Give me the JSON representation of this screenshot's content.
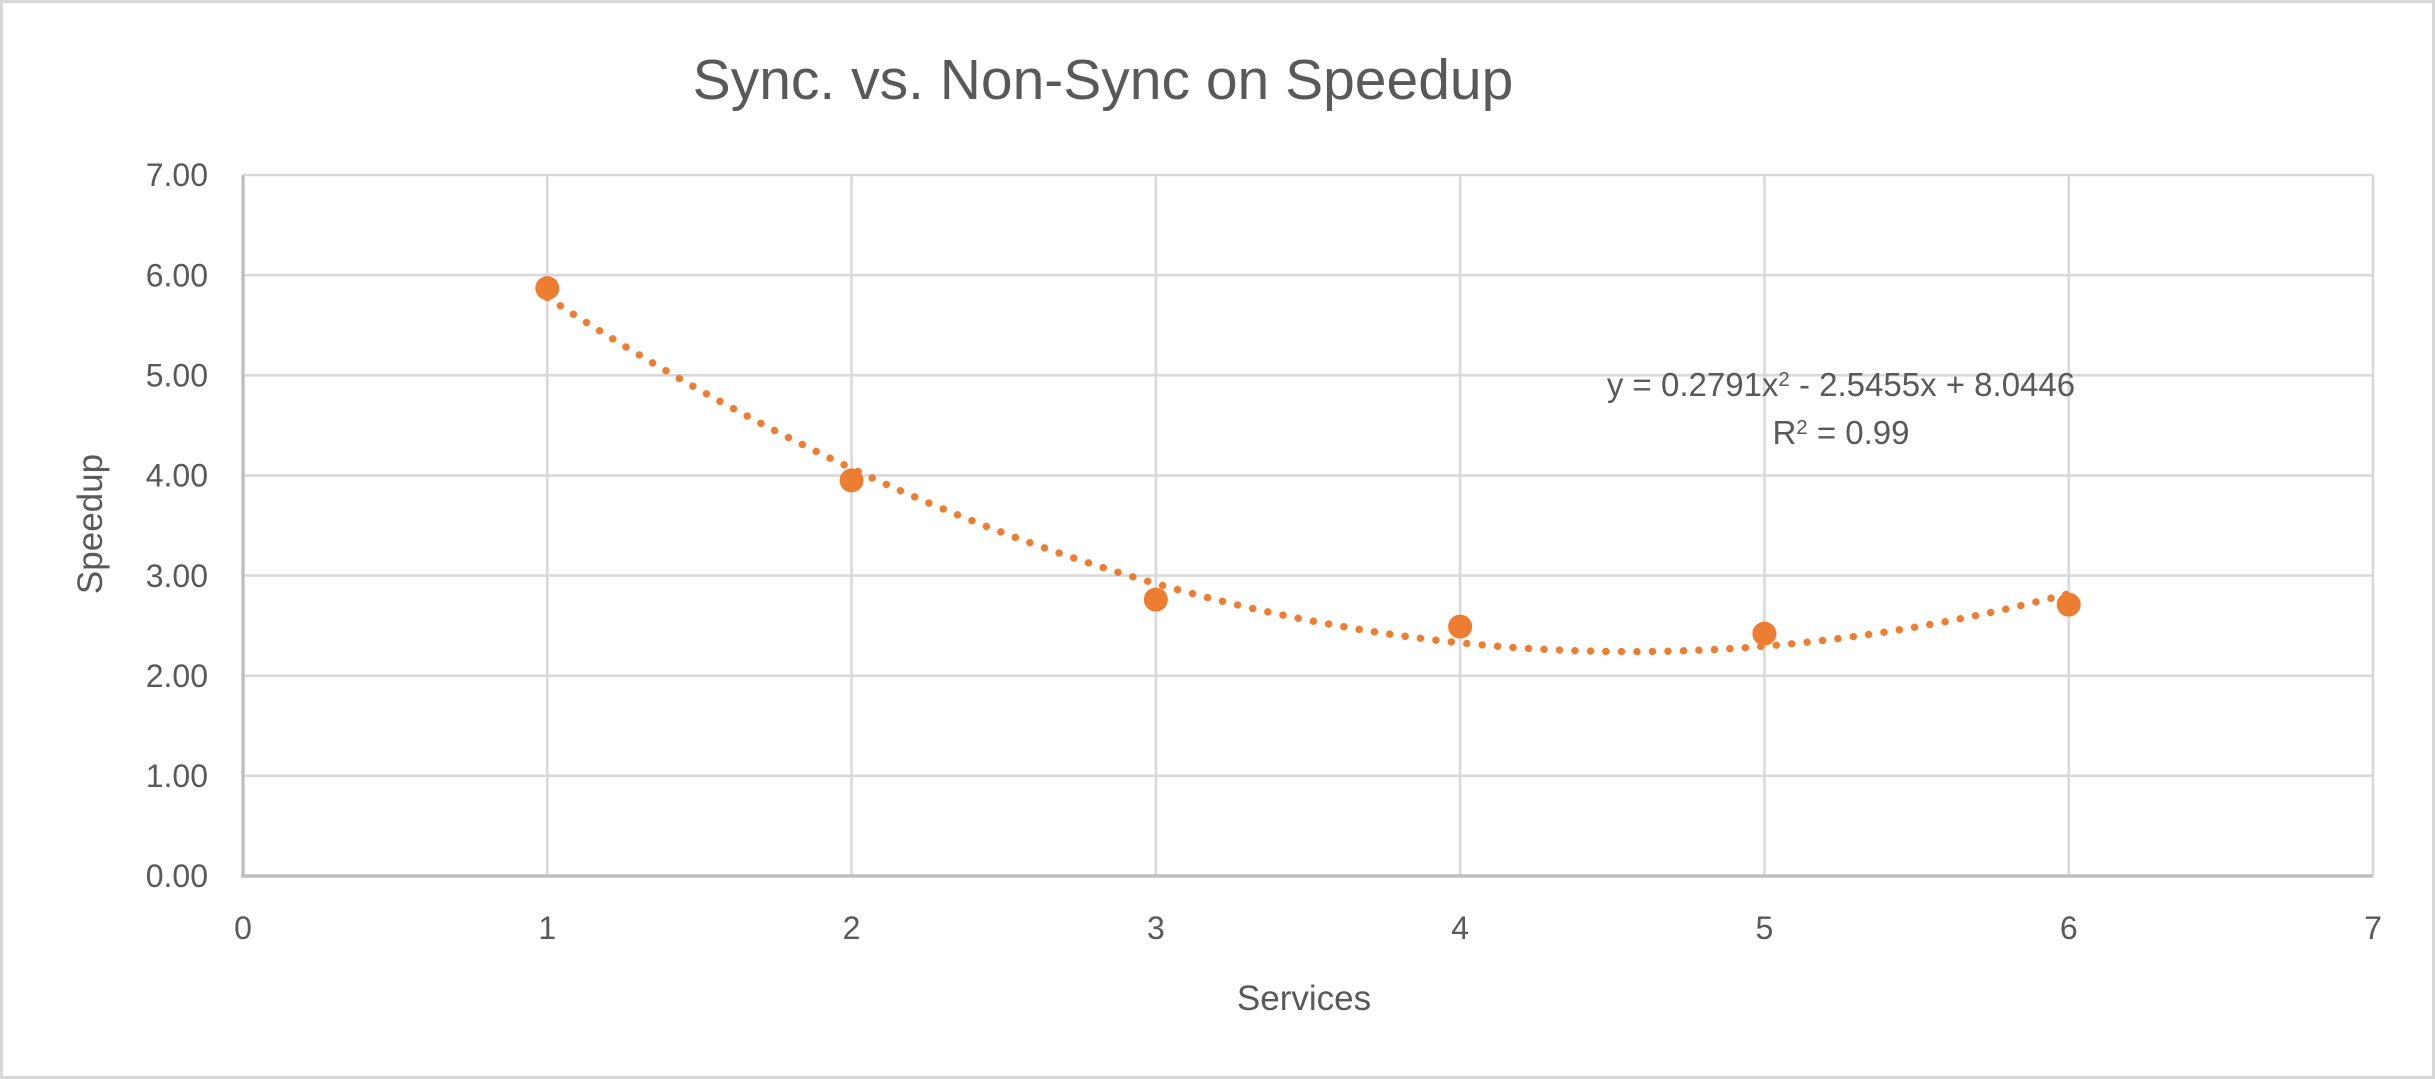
{
  "title": "Sync. vs. Non-Sync on Speedup",
  "axes": {
    "x_title": "Services",
    "y_title": "Speedup"
  },
  "trend_label": {
    "equation_prefix": "y = 0.2791x",
    "equation_sup": "2",
    "equation_suffix": " - 2.5455x + 8.0446",
    "r2_prefix": "R",
    "r2_sup": "2",
    "r2_suffix": " = 0.99"
  },
  "colors": {
    "marker": "#ED7D31",
    "trendline": "#ED7D31",
    "gridline": "#D9D9D9",
    "axis_line": "#BFBFBF",
    "text": "#595959",
    "frame_border": "#D8D8D8",
    "background": "#FFFFFF"
  },
  "chart_data": {
    "type": "scatter",
    "title": "Sync. vs. Non-Sync on Speedup",
    "xlabel": "Services",
    "ylabel": "Speedup",
    "x": [
      1,
      2,
      3,
      4,
      5,
      6
    ],
    "y": [
      5.87,
      3.95,
      2.76,
      2.49,
      2.42,
      2.71
    ],
    "xlim": [
      0,
      7
    ],
    "ylim": [
      0,
      7
    ],
    "x_ticks": [
      "0",
      "1",
      "2",
      "3",
      "4",
      "5",
      "6",
      "7"
    ],
    "y_ticks": [
      "0.00",
      "1.00",
      "2.00",
      "3.00",
      "4.00",
      "5.00",
      "6.00",
      "7.00"
    ],
    "grid": true,
    "legend": "none",
    "marker": {
      "shape": "circle",
      "radius": 12,
      "color": "#ED7D31"
    },
    "trendline": {
      "type": "polynomial",
      "degree": 2,
      "coefficients": {
        "a": 0.2791,
        "b": -2.5455,
        "c": 8.0446
      },
      "x_range": [
        1,
        6
      ],
      "style": "dotted",
      "color": "#ED7D31",
      "equation_text": "y = 0.2791x² - 2.5455x + 8.0446",
      "r_squared_text": "R² = 0.99",
      "r_squared": 0.99
    }
  }
}
